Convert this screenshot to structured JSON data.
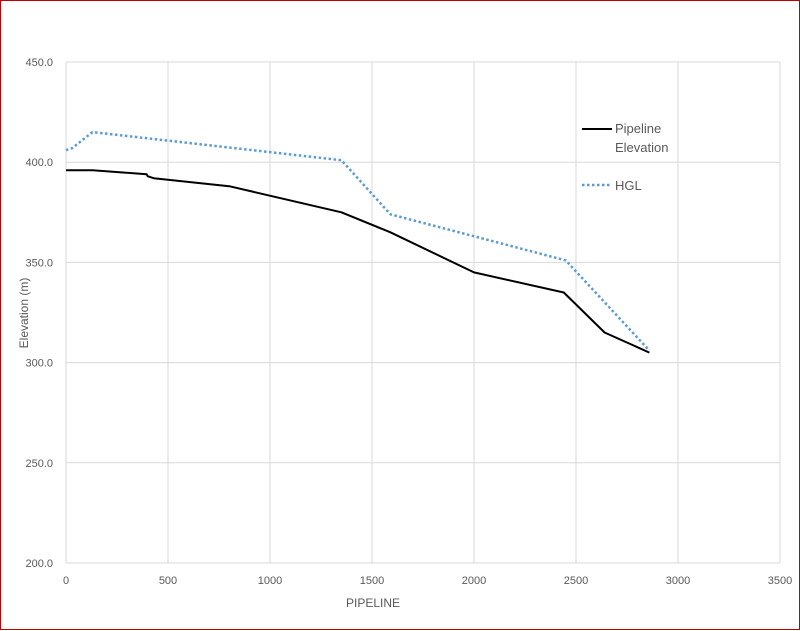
{
  "chart_data": {
    "type": "line",
    "xlabel": "PIPELINE",
    "ylabel": "Elevation (m)",
    "xlim": [
      0,
      3500
    ],
    "ylim": [
      200,
      450
    ],
    "x_ticks": [
      0,
      500,
      1000,
      1500,
      2000,
      2500,
      3000,
      3500
    ],
    "y_ticks": [
      "200.0",
      "250.0",
      "300.0",
      "350.0",
      "400.0",
      "450.0"
    ],
    "grid": true,
    "legend": "right",
    "series": [
      {
        "name": "Pipeline Elevation",
        "style": "solid",
        "color": "#000000",
        "points": [
          [
            0,
            396
          ],
          [
            130,
            396
          ],
          [
            395,
            394
          ],
          [
            400,
            393
          ],
          [
            430,
            392
          ],
          [
            800,
            388
          ],
          [
            1350,
            375
          ],
          [
            1590,
            365
          ],
          [
            2000,
            345
          ],
          [
            2440,
            335
          ],
          [
            2640,
            315
          ],
          [
            2860,
            305
          ]
        ]
      },
      {
        "name": "HGL",
        "style": "dotted",
        "color": "#5b9bd5",
        "points": [
          [
            0,
            406
          ],
          [
            30,
            407
          ],
          [
            130,
            415
          ],
          [
            1350,
            401
          ],
          [
            1590,
            374
          ],
          [
            2450,
            351
          ],
          [
            2860,
            306
          ]
        ]
      }
    ]
  }
}
